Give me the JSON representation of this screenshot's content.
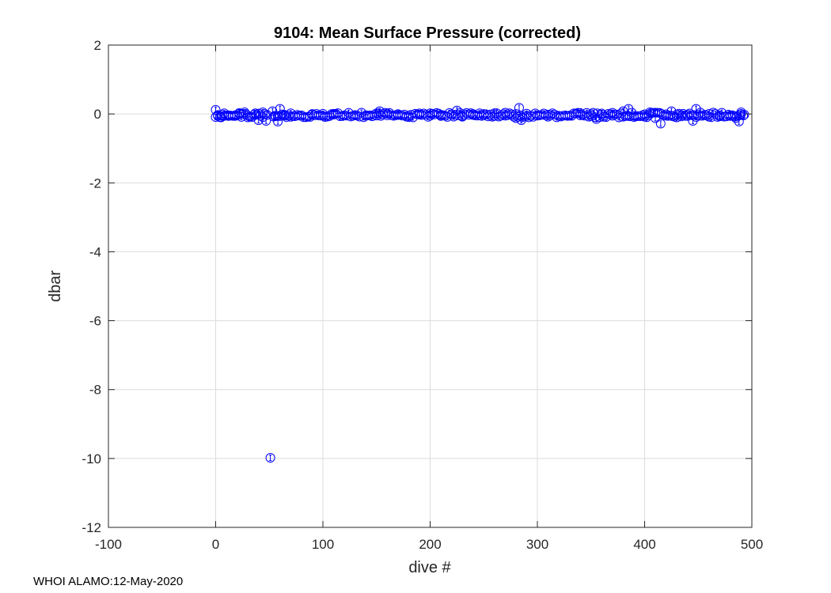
{
  "chart_data": {
    "type": "scatter",
    "title": "9104: Mean Surface Pressure (corrected)",
    "xlabel": "dive #",
    "ylabel": "dbar",
    "xlim": [
      -100,
      500
    ],
    "ylim": [
      -12,
      2
    ],
    "xticks": [
      -100,
      0,
      100,
      200,
      300,
      400,
      500
    ],
    "yticks": [
      -12,
      -10,
      -8,
      -6,
      -4,
      -2,
      0,
      2
    ],
    "xtick_labels": [
      "-100",
      "0",
      "100",
      "200",
      "300",
      "400",
      "500"
    ],
    "ytick_labels": [
      "-12",
      "-10",
      "-8",
      "-6",
      "-4",
      "-2",
      "0",
      "2"
    ],
    "grid": true,
    "marker": "open-circle",
    "series": [
      {
        "name": "mean surface pressure",
        "color": "#0000ff",
        "dive_range": [
          0,
          493
        ],
        "typical_value": -0.03,
        "points": [
          {
            "x": 0,
            "y": 0.12
          },
          {
            "x": 2,
            "y": -0.05
          },
          {
            "x": 5,
            "y": -0.1
          },
          {
            "x": 8,
            "y": 0.02
          },
          {
            "x": 12,
            "y": -0.04
          },
          {
            "x": 18,
            "y": -0.06
          },
          {
            "x": 22,
            "y": 0.03
          },
          {
            "x": 27,
            "y": 0.05
          },
          {
            "x": 30,
            "y": -0.1
          },
          {
            "x": 37,
            "y": 0.02
          },
          {
            "x": 40,
            "y": -0.18
          },
          {
            "x": 44,
            "y": 0.05
          },
          {
            "x": 47,
            "y": -0.2
          },
          {
            "x": 51,
            "y": -9.98
          },
          {
            "x": 53,
            "y": 0.08
          },
          {
            "x": 55,
            "y": -0.05
          },
          {
            "x": 58,
            "y": -0.22
          },
          {
            "x": 60,
            "y": 0.15
          },
          {
            "x": 65,
            "y": -0.05
          },
          {
            "x": 70,
            "y": 0.02
          },
          {
            "x": 80,
            "y": -0.04
          },
          {
            "x": 90,
            "y": 0.0
          },
          {
            "x": 100,
            "y": -0.05
          },
          {
            "x": 110,
            "y": -0.02
          },
          {
            "x": 120,
            "y": -0.04
          },
          {
            "x": 130,
            "y": -0.03
          },
          {
            "x": 140,
            "y": -0.05
          },
          {
            "x": 150,
            "y": 0.02
          },
          {
            "x": 153,
            "y": 0.08
          },
          {
            "x": 160,
            "y": -0.04
          },
          {
            "x": 170,
            "y": -0.03
          },
          {
            "x": 180,
            "y": -0.05
          },
          {
            "x": 190,
            "y": -0.02
          },
          {
            "x": 200,
            "y": -0.05
          },
          {
            "x": 210,
            "y": -0.06
          },
          {
            "x": 220,
            "y": -0.02
          },
          {
            "x": 225,
            "y": 0.1
          },
          {
            "x": 230,
            "y": -0.08
          },
          {
            "x": 240,
            "y": -0.03
          },
          {
            "x": 250,
            "y": -0.04
          },
          {
            "x": 260,
            "y": -0.06
          },
          {
            "x": 270,
            "y": -0.05
          },
          {
            "x": 280,
            "y": -0.12
          },
          {
            "x": 283,
            "y": 0.18
          },
          {
            "x": 285,
            "y": -0.18
          },
          {
            "x": 290,
            "y": -0.05
          },
          {
            "x": 300,
            "y": -0.04
          },
          {
            "x": 310,
            "y": -0.08
          },
          {
            "x": 320,
            "y": -0.06
          },
          {
            "x": 330,
            "y": -0.05
          },
          {
            "x": 340,
            "y": -0.04
          },
          {
            "x": 350,
            "y": -0.06
          },
          {
            "x": 355,
            "y": -0.15
          },
          {
            "x": 360,
            "y": -0.02
          },
          {
            "x": 370,
            "y": -0.05
          },
          {
            "x": 380,
            "y": 0.08
          },
          {
            "x": 385,
            "y": 0.15
          },
          {
            "x": 390,
            "y": -0.05
          },
          {
            "x": 400,
            "y": -0.08
          },
          {
            "x": 405,
            "y": 0.05
          },
          {
            "x": 410,
            "y": -0.12
          },
          {
            "x": 415,
            "y": -0.28
          },
          {
            "x": 420,
            "y": -0.05
          },
          {
            "x": 425,
            "y": 0.08
          },
          {
            "x": 430,
            "y": -0.1
          },
          {
            "x": 435,
            "y": -0.04
          },
          {
            "x": 440,
            "y": -0.06
          },
          {
            "x": 445,
            "y": -0.2
          },
          {
            "x": 448,
            "y": 0.15
          },
          {
            "x": 452,
            "y": -0.05
          },
          {
            "x": 460,
            "y": -0.08
          },
          {
            "x": 470,
            "y": -0.04
          },
          {
            "x": 480,
            "y": -0.06
          },
          {
            "x": 485,
            "y": -0.12
          },
          {
            "x": 488,
            "y": -0.22
          },
          {
            "x": 490,
            "y": 0.05
          },
          {
            "x": 493,
            "y": -0.02
          }
        ]
      }
    ]
  },
  "footer": {
    "text": "WHOI ALAMO:12-May-2020"
  }
}
